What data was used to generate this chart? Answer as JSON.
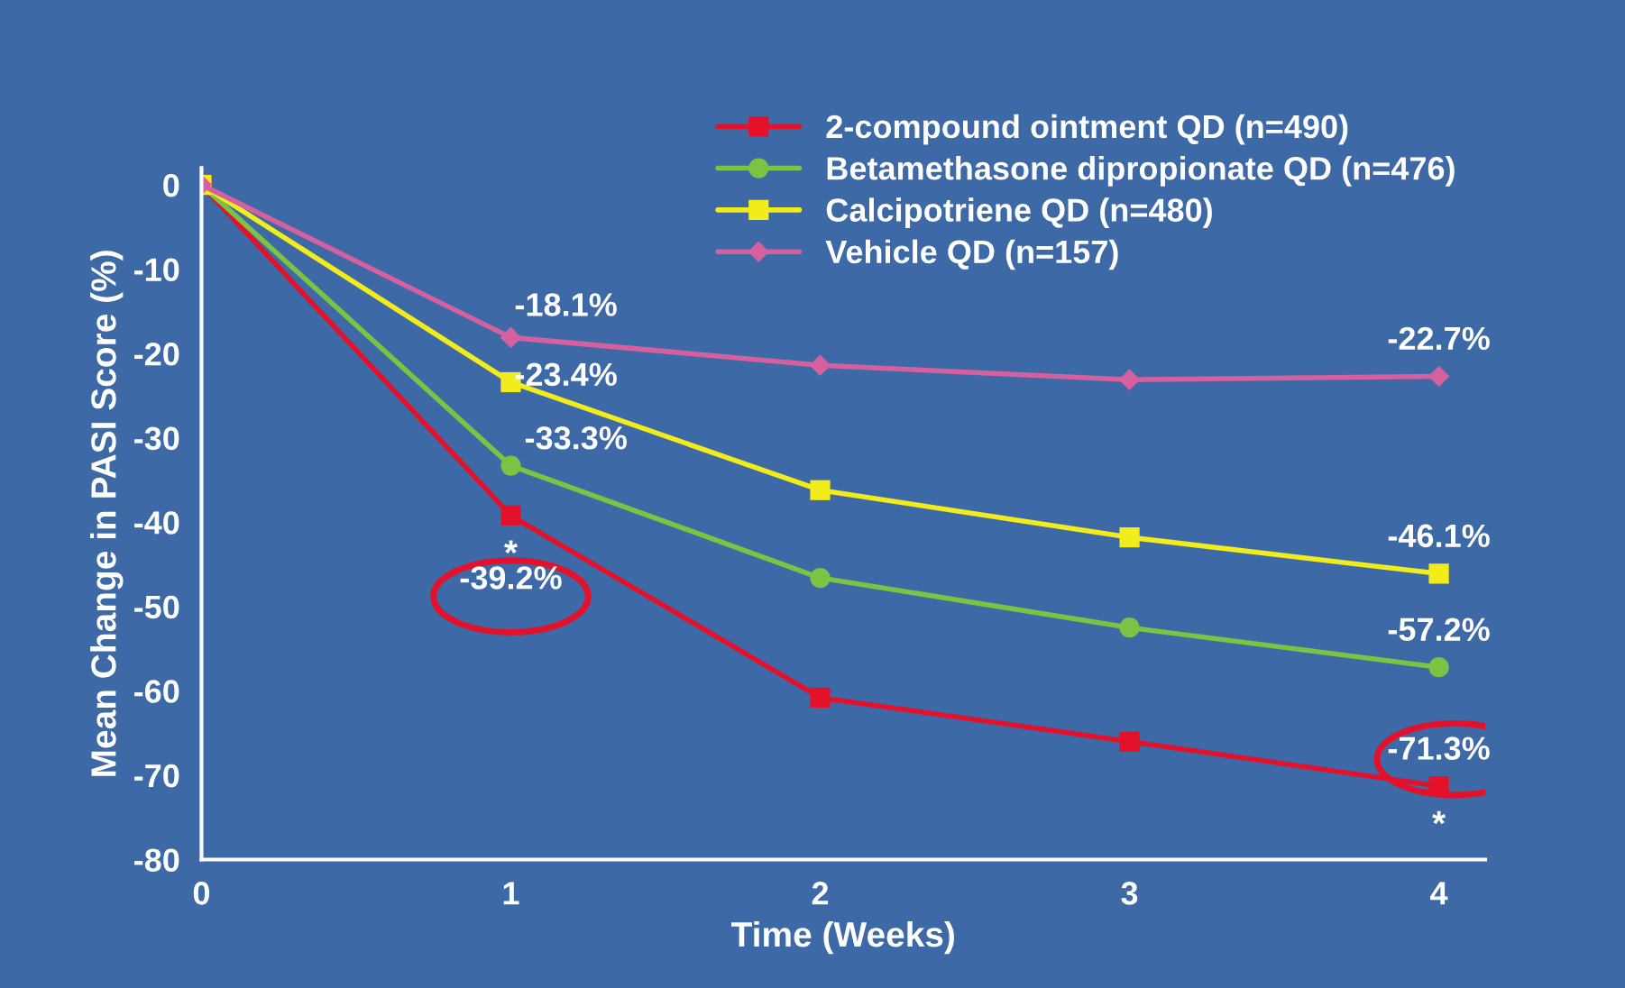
{
  "chart_data": {
    "type": "line",
    "xlabel": "Time (Weeks)",
    "ylabel": "Mean Change in PASI Score (%)",
    "x": [
      0,
      1,
      2,
      3,
      4
    ],
    "xlim": [
      0,
      4.15
    ],
    "xticks": [
      0,
      1,
      2,
      3,
      4
    ],
    "ylim": [
      -80,
      2
    ],
    "yticks": [
      0,
      -10,
      -20,
      -30,
      -40,
      -50,
      -60,
      -70,
      -80
    ],
    "grid": false,
    "legend": "top right",
    "series": [
      {
        "name": "2-compound ointment QD (n=490)",
        "color": "#e3122a",
        "marker": "square",
        "values": [
          0,
          -39.2,
          -60.8,
          -66.0,
          -71.3
        ],
        "value_labels": [
          null,
          "-39.2%",
          null,
          null,
          "-71.3%"
        ]
      },
      {
        "name": "Betamethasone dipropionate QD (n=476)",
        "color": "#7dc242",
        "marker": "circle",
        "values": [
          0,
          -33.3,
          -46.6,
          -52.5,
          -57.2
        ],
        "value_labels": [
          null,
          "-33.3%",
          null,
          null,
          "-57.2%"
        ]
      },
      {
        "name": "Calcipotriene QD (n=480)",
        "color": "#f2ec1c",
        "marker": "square",
        "values": [
          0,
          -23.4,
          -36.2,
          -41.8,
          -46.1
        ],
        "value_labels": [
          null,
          "-23.4%",
          null,
          null,
          "-46.1%"
        ]
      },
      {
        "name": "Vehicle QD (n=157)",
        "color": "#d6609e",
        "marker": "diamond",
        "values": [
          0,
          -18.1,
          -21.4,
          -23.1,
          -22.7
        ],
        "value_labels": [
          null,
          "-18.1%",
          null,
          null,
          "-22.7%"
        ]
      }
    ],
    "annotations": [
      {
        "text": "*",
        "x": 1,
        "y": -39.2
      },
      {
        "text": "*",
        "x": 4,
        "y": -71.3
      }
    ]
  }
}
